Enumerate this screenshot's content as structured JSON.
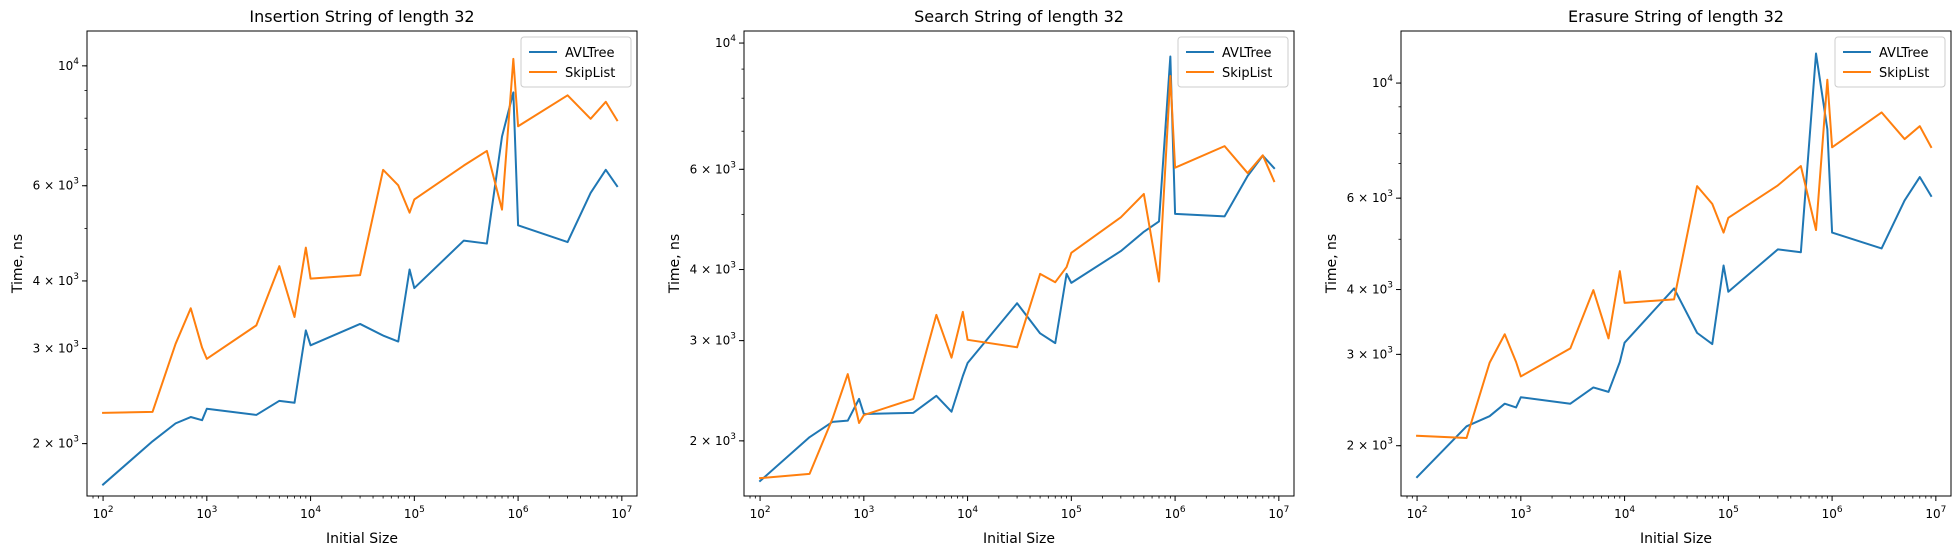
{
  "figure": {
    "background": "#ffffff",
    "colors": {
      "AVLTree": "#1f77b4",
      "SkipList": "#ff7f0e"
    }
  },
  "chart_data": [
    {
      "type": "line",
      "title": "Insertion String of length 32",
      "xlabel": "Initial Size",
      "ylabel": "Time, ns",
      "xscale": "log",
      "yscale": "log",
      "xlim": [
        70,
        14000000
      ],
      "ylim": [
        1600,
        11600
      ],
      "x_ticks": [
        {
          "value": 100,
          "mantissa": null,
          "exp": "2"
        },
        {
          "value": 1000,
          "mantissa": null,
          "exp": "3"
        },
        {
          "value": 10000,
          "mantissa": null,
          "exp": "4"
        },
        {
          "value": 100000,
          "mantissa": null,
          "exp": "5"
        },
        {
          "value": 1000000,
          "mantissa": null,
          "exp": "6"
        },
        {
          "value": 10000000,
          "mantissa": null,
          "exp": "7"
        }
      ],
      "y_ticks": [
        {
          "value": 2000,
          "mantissa": "2",
          "exp": "3"
        },
        {
          "value": 3000,
          "mantissa": "3",
          "exp": "3"
        },
        {
          "value": 4000,
          "mantissa": "4",
          "exp": "3"
        },
        {
          "value": 6000,
          "mantissa": "6",
          "exp": "3"
        },
        {
          "value": 10000,
          "mantissa": null,
          "exp": "4"
        }
      ],
      "legend": {
        "position": "upper right"
      },
      "grid": false,
      "series": [
        {
          "name": "AVLTree",
          "color": "#1f77b4",
          "x": [
            100,
            300,
            500,
            700,
            900,
            1000,
            3000,
            5000,
            7000,
            9000,
            10000,
            30000,
            50000,
            70000,
            90000,
            100000,
            300000,
            500000,
            700000,
            900000,
            1000000,
            3000000,
            5000000,
            7000000,
            9000000
          ],
          "y": [
            1680,
            2020,
            2180,
            2240,
            2210,
            2320,
            2260,
            2400,
            2380,
            3240,
            3040,
            3330,
            3170,
            3090,
            4200,
            3880,
            4750,
            4690,
            7400,
            8930,
            5070,
            4720,
            5820,
            6420,
            5990
          ]
        },
        {
          "name": "SkipList",
          "color": "#ff7f0e",
          "x": [
            100,
            300,
            500,
            700,
            900,
            1000,
            3000,
            5000,
            7000,
            9000,
            10000,
            30000,
            50000,
            70000,
            90000,
            100000,
            300000,
            500000,
            700000,
            900000,
            1000000,
            3000000,
            5000000,
            7000000,
            9000000
          ],
          "y": [
            2280,
            2290,
            3060,
            3560,
            3010,
            2870,
            3310,
            4260,
            3430,
            4610,
            4040,
            4100,
            6420,
            6010,
            5350,
            5660,
            6540,
            6960,
            5420,
            10300,
            7730,
            8820,
            7980,
            8580,
            7930
          ]
        }
      ]
    },
    {
      "type": "line",
      "title": "Search String of length 32",
      "xlabel": "Initial Size",
      "ylabel": "Time, ns",
      "xscale": "log",
      "yscale": "log",
      "xlim": [
        70,
        14000000
      ],
      "ylim": [
        1600,
        10500
      ],
      "x_ticks": [
        {
          "value": 100,
          "mantissa": null,
          "exp": "2"
        },
        {
          "value": 1000,
          "mantissa": null,
          "exp": "3"
        },
        {
          "value": 10000,
          "mantissa": null,
          "exp": "4"
        },
        {
          "value": 100000,
          "mantissa": null,
          "exp": "5"
        },
        {
          "value": 1000000,
          "mantissa": null,
          "exp": "6"
        },
        {
          "value": 10000000,
          "mantissa": null,
          "exp": "7"
        }
      ],
      "y_ticks": [
        {
          "value": 2000,
          "mantissa": "2",
          "exp": "3"
        },
        {
          "value": 3000,
          "mantissa": "3",
          "exp": "3"
        },
        {
          "value": 4000,
          "mantissa": "4",
          "exp": "3"
        },
        {
          "value": 6000,
          "mantissa": "6",
          "exp": "3"
        },
        {
          "value": 10000,
          "mantissa": null,
          "exp": "4"
        }
      ],
      "legend": {
        "position": "upper right"
      },
      "grid": false,
      "series": [
        {
          "name": "AVLTree",
          "color": "#1f77b4",
          "x": [
            100,
            300,
            500,
            700,
            900,
            1000,
            3000,
            5000,
            7000,
            9000,
            10000,
            30000,
            50000,
            70000,
            90000,
            100000,
            300000,
            500000,
            700000,
            900000,
            1000000,
            3000000,
            5000000,
            7000000,
            9000000
          ],
          "y": [
            1700,
            2030,
            2160,
            2170,
            2370,
            2230,
            2240,
            2400,
            2250,
            2600,
            2740,
            3490,
            3090,
            2970,
            3930,
            3790,
            4310,
            4660,
            4860,
            9470,
            5010,
            4960,
            5840,
            6340,
            6030
          ]
        },
        {
          "name": "SkipList",
          "color": "#ff7f0e",
          "x": [
            100,
            300,
            500,
            700,
            900,
            1000,
            3000,
            5000,
            7000,
            9000,
            10000,
            30000,
            50000,
            70000,
            90000,
            100000,
            300000,
            500000,
            700000,
            900000,
            1000000,
            3000000,
            5000000,
            7000000,
            9000000
          ],
          "y": [
            1720,
            1750,
            2190,
            2620,
            2150,
            2220,
            2370,
            3330,
            2800,
            3370,
            3010,
            2920,
            3930,
            3800,
            4040,
            4280,
            4940,
            5430,
            3810,
            8750,
            6040,
            6590,
            5910,
            6350,
            5720
          ]
        }
      ]
    },
    {
      "type": "line",
      "title": "Erasure String of length 32",
      "xlabel": "Initial Size",
      "ylabel": "Time, ns",
      "xscale": "log",
      "yscale": "log",
      "xlim": [
        70,
        14000000
      ],
      "ylim": [
        1600,
        12600
      ],
      "x_ticks": [
        {
          "value": 100,
          "mantissa": null,
          "exp": "2"
        },
        {
          "value": 1000,
          "mantissa": null,
          "exp": "3"
        },
        {
          "value": 10000,
          "mantissa": null,
          "exp": "4"
        },
        {
          "value": 100000,
          "mantissa": null,
          "exp": "5"
        },
        {
          "value": 1000000,
          "mantissa": null,
          "exp": "6"
        },
        {
          "value": 10000000,
          "mantissa": null,
          "exp": "7"
        }
      ],
      "y_ticks": [
        {
          "value": 2000,
          "mantissa": "2",
          "exp": "3"
        },
        {
          "value": 3000,
          "mantissa": "3",
          "exp": "3"
        },
        {
          "value": 4000,
          "mantissa": "4",
          "exp": "3"
        },
        {
          "value": 6000,
          "mantissa": "6",
          "exp": "3"
        },
        {
          "value": 10000,
          "mantissa": null,
          "exp": "4"
        }
      ],
      "legend": {
        "position": "upper right"
      },
      "grid": false,
      "series": [
        {
          "name": "AVLTree",
          "color": "#1f77b4",
          "x": [
            100,
            300,
            500,
            700,
            900,
            1000,
            3000,
            5000,
            7000,
            9000,
            10000,
            30000,
            50000,
            70000,
            90000,
            100000,
            300000,
            500000,
            700000,
            900000,
            1000000,
            3000000,
            5000000,
            7000000,
            9000000
          ],
          "y": [
            1740,
            2180,
            2280,
            2410,
            2370,
            2480,
            2410,
            2590,
            2540,
            2900,
            3160,
            4020,
            3300,
            3140,
            4450,
            3960,
            4780,
            4720,
            11400,
            8150,
            5150,
            4800,
            5940,
            6590,
            6060
          ]
        },
        {
          "name": "SkipList",
          "color": "#ff7f0e",
          "x": [
            100,
            300,
            500,
            700,
            900,
            1000,
            3000,
            5000,
            7000,
            9000,
            10000,
            30000,
            50000,
            70000,
            90000,
            100000,
            300000,
            500000,
            700000,
            900000,
            1000000,
            3000000,
            5000000,
            7000000,
            9000000
          ],
          "y": [
            2090,
            2070,
            2890,
            3280,
            2900,
            2720,
            3080,
            3990,
            3220,
            4340,
            3770,
            3830,
            6330,
            5850,
            5150,
            5500,
            6350,
            6920,
            5210,
            10150,
            7520,
            8780,
            7800,
            8260,
            7530
          ]
        }
      ]
    }
  ]
}
